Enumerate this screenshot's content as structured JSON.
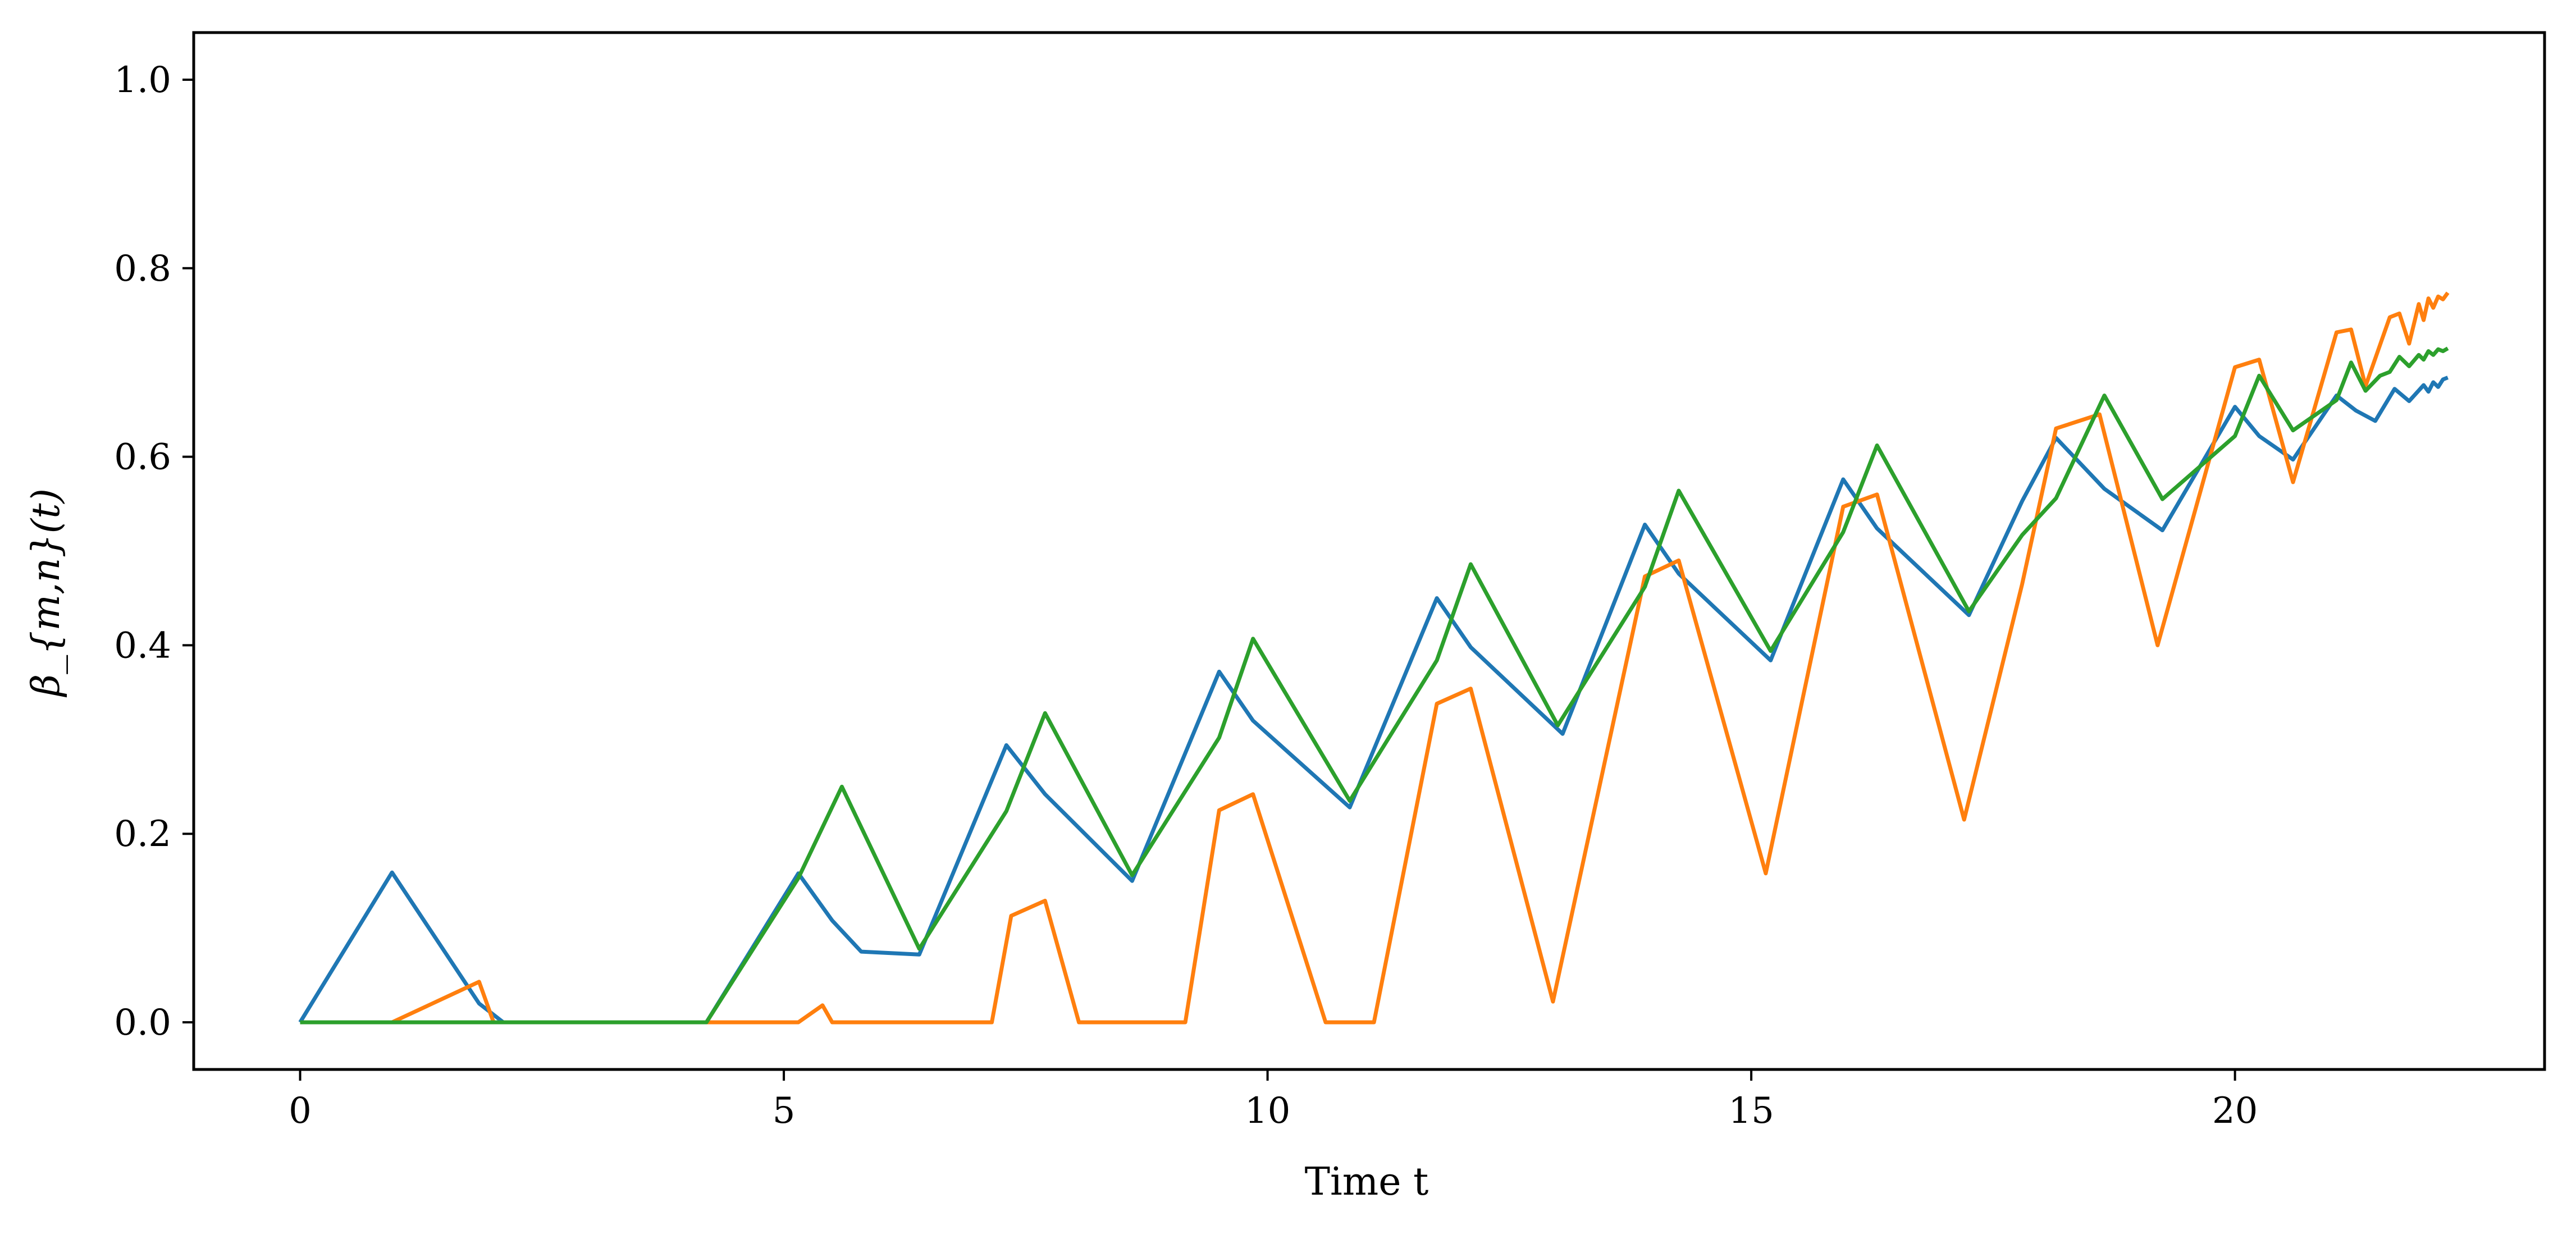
{
  "chart_data": {
    "type": "line",
    "xlabel": "Time t",
    "ylabel": "β_{m,n}(t)",
    "xlim": [
      -1.1,
      23.2
    ],
    "ylim": [
      -0.05,
      1.05
    ],
    "xticks": [
      0,
      5,
      10,
      15,
      20
    ],
    "xtick_labels": [
      "0",
      "5",
      "10",
      "15",
      "20"
    ],
    "yticks": [
      0.0,
      0.2,
      0.4,
      0.6,
      0.8,
      1.0
    ],
    "ytick_labels": [
      "0.0",
      "0.2",
      "0.4",
      "0.6",
      "0.8",
      "1.0"
    ],
    "grid": false,
    "series": [
      {
        "color": "#1f77b4",
        "x": [
          0,
          0.95,
          1.85,
          2.1,
          4.2,
          5.15,
          5.5,
          5.8,
          6.4,
          7.3,
          7.7,
          8.6,
          9.5,
          9.85,
          10.85,
          11.75,
          12.1,
          13.05,
          13.9,
          14.25,
          15.2,
          15.95,
          16.3,
          17.25,
          17.8,
          18.15,
          18.65,
          19.25,
          20.0,
          20.25,
          20.6,
          21.05,
          21.25,
          21.45,
          21.65,
          21.8,
          21.95,
          22.0,
          22.05,
          22.1,
          22.15,
          22.2
        ],
        "y": [
          0.0,
          0.159,
          0.02,
          0.0,
          0.0,
          0.158,
          0.108,
          0.075,
          0.072,
          0.294,
          0.242,
          0.15,
          0.372,
          0.32,
          0.228,
          0.45,
          0.398,
          0.306,
          0.528,
          0.476,
          0.384,
          0.576,
          0.524,
          0.432,
          0.553,
          0.62,
          0.566,
          0.522,
          0.653,
          0.622,
          0.597,
          0.665,
          0.649,
          0.638,
          0.672,
          0.659,
          0.676,
          0.669,
          0.679,
          0.674,
          0.682,
          0.684
        ]
      },
      {
        "color": "#ff7f0e",
        "x": [
          0,
          0.95,
          1.85,
          2.0,
          5.15,
          5.4,
          5.5,
          7.15,
          7.35,
          7.7,
          8.05,
          9.15,
          9.5,
          9.85,
          10.6,
          11.1,
          11.75,
          12.1,
          12.95,
          13.9,
          14.25,
          15.15,
          15.95,
          16.3,
          17.2,
          17.8,
          18.15,
          18.6,
          19.2,
          20.0,
          20.25,
          20.6,
          21.05,
          21.2,
          21.35,
          21.6,
          21.7,
          21.8,
          21.9,
          21.95,
          22.0,
          22.05,
          22.1,
          22.15,
          22.2
        ],
        "y": [
          0.0,
          0.0,
          0.043,
          0.0,
          0.0,
          0.018,
          0.0,
          0.0,
          0.113,
          0.129,
          0.0,
          0.0,
          0.225,
          0.242,
          0.0,
          0.0,
          0.338,
          0.354,
          0.022,
          0.473,
          0.49,
          0.158,
          0.547,
          0.56,
          0.215,
          0.465,
          0.63,
          0.645,
          0.4,
          0.695,
          0.703,
          0.573,
          0.732,
          0.735,
          0.675,
          0.748,
          0.752,
          0.72,
          0.762,
          0.745,
          0.768,
          0.758,
          0.77,
          0.767,
          0.774
        ]
      },
      {
        "color": "#2ca02c",
        "x": [
          0,
          4.2,
          5.15,
          5.6,
          6.4,
          7.3,
          7.7,
          8.6,
          9.5,
          9.85,
          10.85,
          11.75,
          12.1,
          13.0,
          13.9,
          14.25,
          15.2,
          15.95,
          16.3,
          17.25,
          17.8,
          18.15,
          18.65,
          19.25,
          20.0,
          20.25,
          20.6,
          21.05,
          21.2,
          21.35,
          21.5,
          21.6,
          21.7,
          21.8,
          21.9,
          21.95,
          22.0,
          22.05,
          22.1,
          22.15,
          22.2
        ],
        "y": [
          0.0,
          0.0,
          0.153,
          0.25,
          0.078,
          0.224,
          0.328,
          0.156,
          0.302,
          0.407,
          0.235,
          0.384,
          0.486,
          0.315,
          0.462,
          0.564,
          0.394,
          0.52,
          0.612,
          0.436,
          0.517,
          0.556,
          0.665,
          0.555,
          0.622,
          0.686,
          0.628,
          0.66,
          0.7,
          0.67,
          0.686,
          0.69,
          0.706,
          0.696,
          0.708,
          0.703,
          0.712,
          0.708,
          0.714,
          0.712,
          0.715
        ]
      }
    ]
  }
}
